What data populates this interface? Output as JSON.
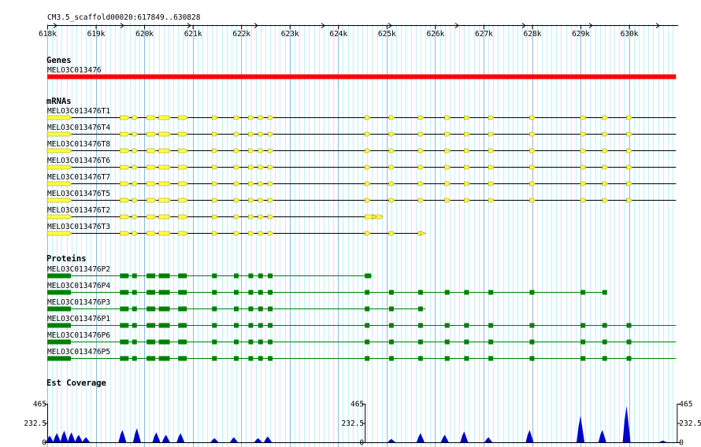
{
  "location": "CM3.5_scaffold00020:617849..630828",
  "colors": {
    "gene": "#ff0000",
    "mrna": "#ffff44",
    "mrna_outline": "#a09000",
    "protein": "#008000",
    "coverage": "#0000cc",
    "grid_major": "#8fb8dc",
    "grid_minor": "#c4eef8"
  },
  "ruler": {
    "start_kb": 618,
    "end_kb": 630.97,
    "ticks": [
      "618k",
      "619k",
      "620k",
      "621k",
      "622k",
      "623k",
      "624k",
      "625k",
      "626k",
      "627k",
      "628k",
      "629k",
      "630k"
    ]
  },
  "tracks": {
    "genes": {
      "title": "Genes",
      "items": [
        {
          "name": "MELO3C013476",
          "start": 618.0,
          "end": 630.97
        }
      ]
    },
    "mrnas": {
      "title": "mRNAs",
      "items": [
        {
          "name": "MELO3C013476T1",
          "end": 630.97
        },
        {
          "name": "MELO3C013476T4",
          "end": 630.97
        },
        {
          "name": "MELO3C013476T8",
          "end": 630.97
        },
        {
          "name": "MELO3C013476T6",
          "end": 630.97
        },
        {
          "name": "MELO3C013476T7",
          "end": 630.97
        },
        {
          "name": "MELO3C013476T5",
          "end": 630.97
        },
        {
          "name": "MELO3C013476T2",
          "end": 624.8
        },
        {
          "name": "MELO3C013476T3",
          "end": 625.8
        }
      ]
    },
    "proteins": {
      "title": "Proteins",
      "items": [
        {
          "name": "MELO3C013476P2",
          "end": 624.7
        },
        {
          "name": "MELO3C013476P4",
          "end": 629.5
        },
        {
          "name": "MELO3C013476P3",
          "end": 625.8
        },
        {
          "name": "MELO3C013476P1",
          "end": 630.97
        },
        {
          "name": "MELO3C013476P6",
          "end": 630.97
        },
        {
          "name": "MELO3C013476P5",
          "end": 630.97
        }
      ]
    },
    "coverage": {
      "title": "Est Coverage",
      "max_label": "465",
      "mid_label": "232.5",
      "zero_label": "0",
      "max": 465
    }
  },
  "exons_kb": [
    618.0,
    619.5,
    619.75,
    620.05,
    620.3,
    620.7,
    621.4,
    621.85,
    622.15,
    622.35,
    622.55,
    624.55,
    625.05,
    625.65,
    626.2,
    626.6,
    627.1,
    627.95,
    629.0,
    629.45,
    629.95
  ],
  "coverage_peaks": [
    {
      "kb": 618.05,
      "v": 80
    },
    {
      "kb": 618.2,
      "v": 110
    },
    {
      "kb": 618.35,
      "v": 140
    },
    {
      "kb": 618.5,
      "v": 120
    },
    {
      "kb": 618.65,
      "v": 90
    },
    {
      "kb": 618.8,
      "v": 60
    },
    {
      "kb": 619.55,
      "v": 150
    },
    {
      "kb": 619.85,
      "v": 170
    },
    {
      "kb": 620.25,
      "v": 120
    },
    {
      "kb": 620.45,
      "v": 90
    },
    {
      "kb": 620.75,
      "v": 110
    },
    {
      "kb": 621.45,
      "v": 50
    },
    {
      "kb": 621.85,
      "v": 60
    },
    {
      "kb": 622.35,
      "v": 50
    },
    {
      "kb": 622.55,
      "v": 70
    },
    {
      "kb": 625.1,
      "v": 40
    },
    {
      "kb": 625.7,
      "v": 110
    },
    {
      "kb": 626.2,
      "v": 90
    },
    {
      "kb": 626.6,
      "v": 130
    },
    {
      "kb": 627.1,
      "v": 60
    },
    {
      "kb": 627.95,
      "v": 150
    },
    {
      "kb": 629.0,
      "v": 320
    },
    {
      "kb": 629.45,
      "v": 150
    },
    {
      "kb": 629.95,
      "v": 440
    },
    {
      "kb": 630.7,
      "v": 20
    }
  ]
}
